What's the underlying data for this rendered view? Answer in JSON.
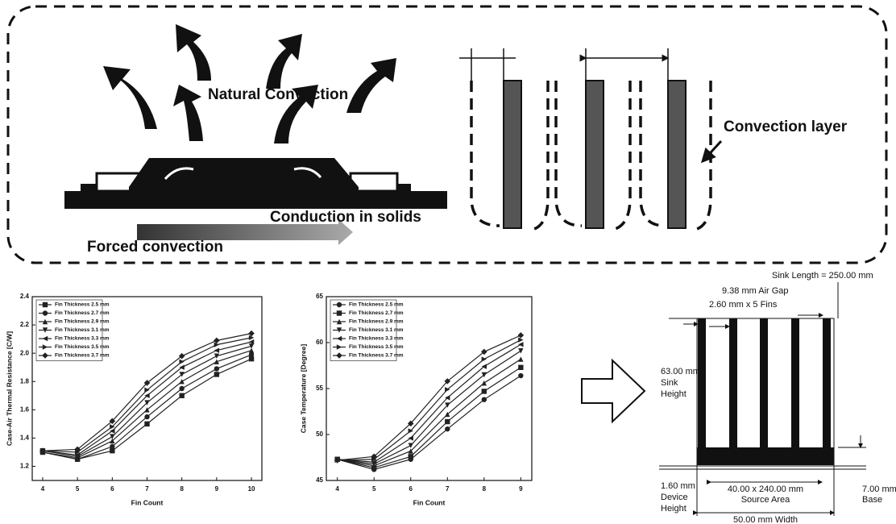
{
  "diagram": {
    "natural_convection": "Natural Convection",
    "conduction": "Conduction in solids",
    "forced_convection": "Forced convection",
    "convection_layer": "Convection layer",
    "sink_length": "Sink Length = 250.00 mm",
    "air_gap": "9.38 mm Air Gap",
    "fins": "2.60 mm x 5 Fins",
    "sink_height": [
      "63.00 mm",
      "Sink",
      "Height"
    ],
    "device_height": [
      "1.60 mm",
      "Device",
      "Height"
    ],
    "source_area": [
      "40.00 x 240.00 mm",
      "Source Area"
    ],
    "base": [
      "7.00 mm",
      "Base"
    ],
    "width": "50.00 mm Width"
  },
  "chart_data": [
    {
      "type": "line",
      "ylabel": "Case-Air Thermal Resistance [C/W]",
      "xlabel": "Fin Count",
      "x": [
        4,
        5,
        6,
        7,
        8,
        9,
        10
      ],
      "xlim": [
        3.7,
        10.3
      ],
      "xticks": [
        4,
        5,
        6,
        7,
        8,
        9,
        10
      ],
      "ylim": [
        1.1,
        2.4
      ],
      "yticks": [
        1.2,
        1.4,
        1.6,
        1.8,
        {
          "value": 2,
          "label": "2.0"
        },
        2.2,
        2.4
      ],
      "series": [
        {
          "name": "Fin Thickness 2.5 mm",
          "color": "#222",
          "marker": "square",
          "values": [
            1.3,
            1.25,
            1.31,
            1.5,
            1.7,
            1.85,
            1.96
          ]
        },
        {
          "name": "Fin Thickness 2.7 mm",
          "color": "#222",
          "marker": "circle",
          "values": [
            1.3,
            1.25,
            1.34,
            1.55,
            1.75,
            1.89,
            1.99
          ]
        },
        {
          "name": "Fin Thickness 2.9 mm",
          "color": "#222",
          "marker": "triangle-up",
          "values": [
            1.3,
            1.26,
            1.38,
            1.6,
            1.8,
            1.94,
            2.02
          ]
        },
        {
          "name": "Fin Thickness 3.1 mm",
          "color": "#222",
          "marker": "triangle-down",
          "values": [
            1.31,
            1.27,
            1.41,
            1.65,
            1.85,
            1.98,
            2.05
          ]
        },
        {
          "name": "Fin Thickness 3.3 mm",
          "color": "#222",
          "marker": "triangle-left",
          "values": [
            1.31,
            1.28,
            1.45,
            1.7,
            1.9,
            2.02,
            2.08
          ]
        },
        {
          "name": "Fin Thickness 3.5 mm",
          "color": "#222",
          "marker": "triangle-right",
          "values": [
            1.31,
            1.3,
            1.48,
            1.74,
            1.94,
            2.06,
            2.11
          ]
        },
        {
          "name": "Fin Thickness 3.7 mm",
          "color": "#222",
          "marker": "diamond",
          "values": [
            1.31,
            1.32,
            1.52,
            1.79,
            1.98,
            2.09,
            2.14
          ]
        }
      ]
    },
    {
      "type": "line",
      "ylabel": "Case Temperature [Degree]",
      "xlabel": "Fin Count",
      "x": [
        4,
        5,
        6,
        7,
        8,
        9
      ],
      "xlim": [
        3.7,
        9.3
      ],
      "xticks": [
        4,
        5,
        6,
        7,
        8,
        9
      ],
      "ylim": [
        45,
        65
      ],
      "yticks": [
        45,
        50,
        55,
        60,
        65
      ],
      "series": [
        {
          "name": "Fin Thickness 2.5 mm",
          "color": "#222",
          "marker": "circle",
          "values": [
            47.3,
            46.2,
            47.3,
            50.6,
            53.8,
            56.4
          ]
        },
        {
          "name": "Fin Thickness 2.7 mm",
          "color": "#222",
          "marker": "square",
          "values": [
            47.3,
            46.4,
            47.6,
            51.4,
            54.7,
            57.3
          ]
        },
        {
          "name": "Fin Thickness 2.9 mm",
          "color": "#222",
          "marker": "triangle-up",
          "values": [
            47.3,
            46.6,
            48.2,
            52.2,
            55.6,
            58.2
          ]
        },
        {
          "name": "Fin Thickness 3.1 mm",
          "color": "#222",
          "marker": "triangle-down",
          "values": [
            47.3,
            46.8,
            48.8,
            53.2,
            56.5,
            59.1
          ]
        },
        {
          "name": "Fin Thickness 3.3 mm",
          "color": "#222",
          "marker": "triangle-left",
          "values": [
            47.3,
            47.0,
            49.6,
            54.0,
            57.4,
            59.8
          ]
        },
        {
          "name": "Fin Thickness 3.5 mm",
          "color": "#222",
          "marker": "triangle-right",
          "values": [
            47.2,
            47.3,
            50.4,
            54.9,
            58.2,
            60.3
          ]
        },
        {
          "name": "Fin Thickness 3.7 mm",
          "color": "#222",
          "marker": "diamond",
          "values": [
            47.2,
            47.6,
            51.2,
            55.8,
            59.0,
            60.8
          ]
        }
      ]
    }
  ]
}
